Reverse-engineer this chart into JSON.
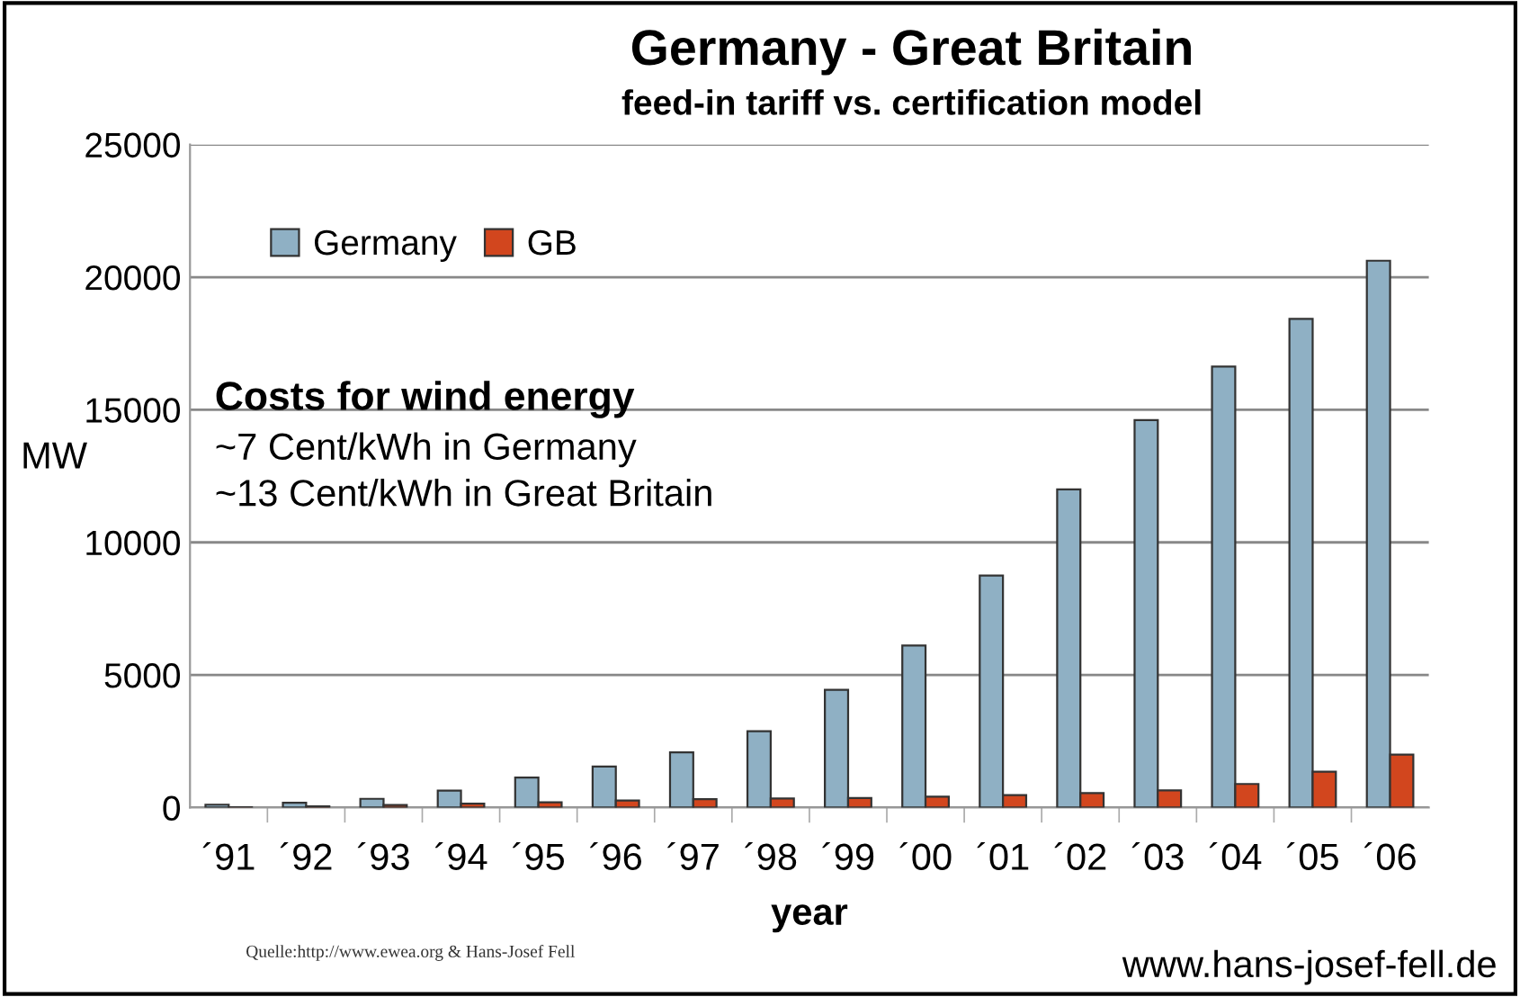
{
  "chart_data": {
    "type": "bar",
    "title": "Germany - Great Britain",
    "subtitle": "feed-in tariff vs. certification model",
    "xlabel": "year",
    "ylabel": "MW",
    "categories": [
      "´91",
      "´92",
      "´93",
      "´94",
      "´95",
      "´96",
      "´97",
      "´98",
      "´99",
      "´00",
      "´01",
      "´02",
      "´03",
      "´04",
      "´05",
      "´06"
    ],
    "series": [
      {
        "name": "Germany",
        "color": "#8fb0c4",
        "values": [
          110,
          180,
          330,
          640,
          1130,
          1550,
          2080,
          2880,
          4440,
          6110,
          8750,
          12000,
          14610,
          16630,
          18430,
          20620
        ]
      },
      {
        "name": "GB",
        "color": "#d2461e",
        "values": [
          10,
          50,
          100,
          150,
          200,
          270,
          320,
          340,
          360,
          410,
          470,
          550,
          650,
          890,
          1350,
          2000
        ]
      }
    ],
    "ylim": [
      0,
      25000
    ],
    "yticks": [
      0,
      5000,
      10000,
      15000,
      20000,
      25000
    ],
    "grid": "y",
    "legend": "top left",
    "annotations": [
      "Costs for wind energy",
      "~7 Cent/kWh in Germany",
      "~13 Cent/kWh in Great Britain",
      "Quelle:http://www.ewea.org & Hans-Josef Fell",
      "www.hans-josef-fell.de"
    ]
  }
}
